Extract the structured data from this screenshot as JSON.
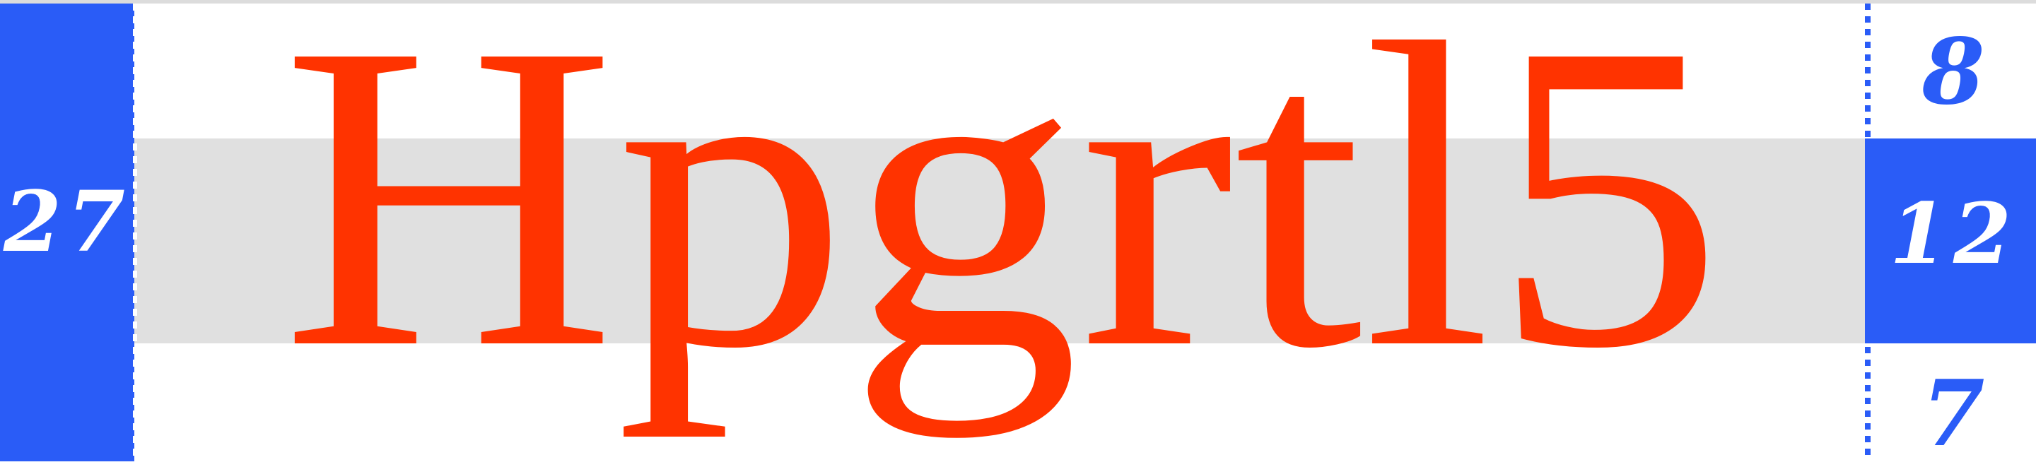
{
  "specimen": {
    "text": "Hpgrtl5",
    "glyph_color": "#ff3300"
  },
  "metrics": {
    "left_value": "27",
    "right_top_value": "8",
    "right_middle_value": "12",
    "right_bottom_value": "7"
  },
  "colors": {
    "accent": "#2a5cf7",
    "x_height_band": "#e0e0e0",
    "background": "#ffffff"
  }
}
